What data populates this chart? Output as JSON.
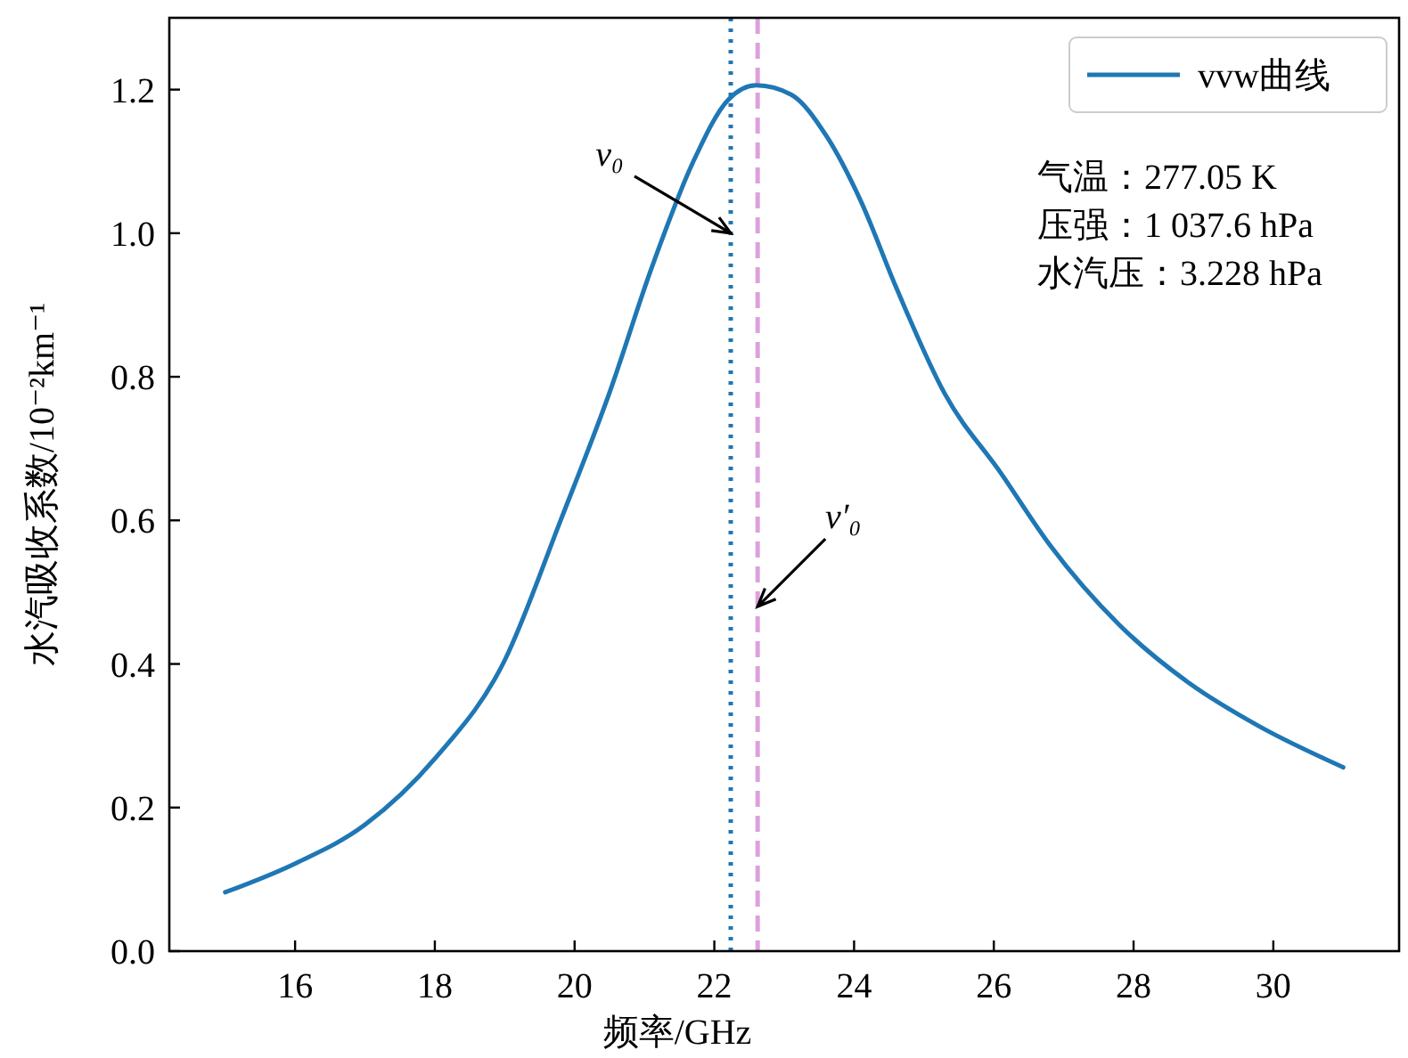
{
  "chart_data": {
    "type": "line",
    "xlabel": "频率/GHz",
    "ylabel": "水汽吸收系数/10⁻²km⁻¹",
    "x": [
      15,
      16,
      17,
      18,
      19,
      19.8,
      20.5,
      21.1,
      21.7,
      22.2,
      22.6,
      23.1,
      23.6,
      24.1,
      24.6,
      25.3,
      26.1,
      26.8,
      27.8,
      28.8,
      29.8,
      31
    ],
    "series": [
      {
        "name": "vvw曲线",
        "color": "#1f77b4",
        "values": [
          0.082,
          0.122,
          0.176,
          0.268,
          0.405,
          0.6,
          0.778,
          0.951,
          1.1,
          1.186,
          1.206,
          1.193,
          1.136,
          1.044,
          0.925,
          0.776,
          0.666,
          0.566,
          0.454,
          0.373,
          0.313,
          0.256
        ]
      }
    ],
    "xlim": [
      14.2,
      31.8
    ],
    "xticks": [
      16,
      18,
      20,
      22,
      24,
      26,
      28,
      30
    ],
    "ylim": [
      0,
      1.3
    ],
    "yticks": [
      {
        "value": 0,
        "label": "0.0"
      },
      0.2,
      0.4,
      0.6,
      0.8,
      {
        "value": 1,
        "label": "1.0"
      },
      1.2
    ],
    "ref_lines": [
      {
        "axis": "x",
        "value": 22.235,
        "color": "#1f77b4",
        "line_style": "dotted"
      },
      {
        "axis": "x",
        "value": 22.62,
        "color": "#dda0dd",
        "line_style": "dashed"
      }
    ],
    "annotations": [
      {
        "text": "v₀",
        "x": 22.235,
        "y": 1.0
      },
      {
        "text": "v′₀",
        "x": 22.62,
        "y": 0.48
      },
      "气温：277.05 K",
      "压强：1 037.6 hPa",
      "水汽压：3.228 hPa"
    ],
    "legend": "top right",
    "grid": false,
    "marker": "none",
    "line_style": "solid"
  }
}
